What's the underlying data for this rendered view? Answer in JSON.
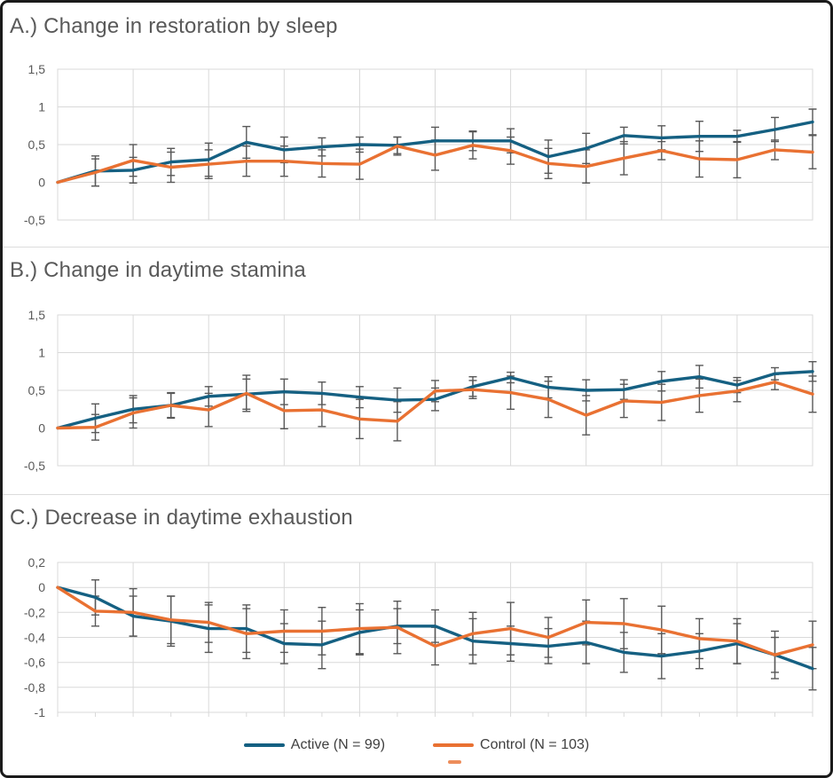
{
  "colors": {
    "active": "#156082",
    "control": "#E97132",
    "error_bar": "#595959",
    "gridline": "#D9D9D9",
    "title_text": "#595959",
    "tick_text": "#595959",
    "legend_text": "#3F3F3F",
    "border": "#1A1A1A",
    "background": "#FFFFFF"
  },
  "legend": {
    "items": [
      {
        "label": "Active (N = 99)",
        "color_key": "active"
      },
      {
        "label": "Control (N = 103)",
        "color_key": "control"
      }
    ]
  },
  "chart_data": [
    {
      "id": "A",
      "type": "line",
      "title": "A.) Change in restoration by sleep",
      "x": [
        0,
        1,
        2,
        3,
        4,
        5,
        6,
        7,
        8,
        9,
        10,
        11,
        12,
        13,
        14,
        15,
        16,
        17,
        18,
        19,
        20
      ],
      "ylim": [
        -0.5,
        1.5
      ],
      "yticks": [
        {
          "value": 1.5,
          "label": "1,5"
        },
        {
          "value": 1,
          "label": "1"
        },
        {
          "value": 0.5,
          "label": "0,5"
        },
        {
          "value": 0,
          "label": "0"
        },
        {
          "value": -0.5,
          "label": "-0,5"
        }
      ],
      "x_grid_step": 2,
      "x_tick_marks": false,
      "grid": true,
      "legend_position": "none",
      "series": [
        {
          "name": "Active (N = 99)",
          "color_key": "active",
          "values": [
            0,
            0.15,
            0.16,
            0.27,
            0.3,
            0.53,
            0.43,
            0.47,
            0.5,
            0.49,
            0.55,
            0.55,
            0.55,
            0.34,
            0.45,
            0.62,
            0.59,
            0.61,
            0.61,
            0.7,
            0.8
          ],
          "errors": [
            0,
            0.2,
            0.17,
            0.18,
            0.22,
            0.21,
            0.17,
            0.12,
            0.1,
            0.11,
            0.18,
            0.13,
            0.16,
            0.22,
            0.2,
            0.11,
            0.16,
            0.2,
            0.08,
            0.16,
            0.17
          ]
        },
        {
          "name": "Control (N = 103)",
          "color_key": "control",
          "values": [
            0,
            0.13,
            0.29,
            0.2,
            0.24,
            0.28,
            0.28,
            0.25,
            0.24,
            0.48,
            0.36,
            0.49,
            0.42,
            0.25,
            0.21,
            0.32,
            0.42,
            0.31,
            0.3,
            0.43,
            0.4
          ],
          "errors": [
            0,
            0.18,
            0.21,
            0.2,
            0.19,
            0.2,
            0.2,
            0.18,
            0.2,
            0.12,
            0.2,
            0.18,
            0.18,
            0.2,
            0.22,
            0.22,
            0.12,
            0.24,
            0.24,
            0.13,
            0.22
          ]
        }
      ]
    },
    {
      "id": "B",
      "type": "line",
      "title": "B.) Change in daytime stamina",
      "x": [
        0,
        1,
        2,
        3,
        4,
        5,
        6,
        7,
        8,
        9,
        10,
        11,
        12,
        13,
        14,
        15,
        16,
        17,
        18,
        19,
        20
      ],
      "ylim": [
        -0.5,
        1.5
      ],
      "yticks": [
        {
          "value": 1.5,
          "label": "1,5"
        },
        {
          "value": 1,
          "label": "1"
        },
        {
          "value": 0.5,
          "label": "0,5"
        },
        {
          "value": 0,
          "label": "0"
        },
        {
          "value": -0.5,
          "label": "-0,5"
        }
      ],
      "x_grid_step": 2,
      "x_tick_marks": false,
      "grid": true,
      "legend_position": "none",
      "series": [
        {
          "name": "Active (N = 99)",
          "color_key": "active",
          "values": [
            0,
            0.13,
            0.25,
            0.3,
            0.42,
            0.45,
            0.48,
            0.46,
            0.41,
            0.37,
            0.38,
            0.55,
            0.67,
            0.54,
            0.5,
            0.51,
            0.62,
            0.68,
            0.57,
            0.72,
            0.75
          ],
          "errors": [
            0,
            0.19,
            0.18,
            0.16,
            0.13,
            0.2,
            0.17,
            0.15,
            0.14,
            0.16,
            0.15,
            0.13,
            0.07,
            0.14,
            0.14,
            0.13,
            0.13,
            0.15,
            0.1,
            0.08,
            0.13
          ]
        },
        {
          "name": "Control (N = 103)",
          "color_key": "control",
          "values": [
            0,
            0.01,
            0.2,
            0.3,
            0.24,
            0.46,
            0.23,
            0.24,
            0.12,
            0.09,
            0.49,
            0.51,
            0.47,
            0.38,
            0.17,
            0.36,
            0.34,
            0.43,
            0.49,
            0.61,
            0.45
          ],
          "errors": [
            0,
            0.17,
            0.2,
            0.17,
            0.22,
            0.24,
            0.24,
            0.22,
            0.26,
            0.26,
            0.14,
            0.12,
            0.22,
            0.24,
            0.26,
            0.22,
            0.24,
            0.22,
            0.14,
            0.1,
            0.24
          ]
        }
      ]
    },
    {
      "id": "C",
      "type": "line",
      "title": "C.) Decrease in daytime exhaustion",
      "x": [
        0,
        1,
        2,
        3,
        4,
        5,
        6,
        7,
        8,
        9,
        10,
        11,
        12,
        13,
        14,
        15,
        16,
        17,
        18,
        19,
        20
      ],
      "ylim": [
        -1,
        0.2
      ],
      "yticks": [
        {
          "value": 0.2,
          "label": "0,2"
        },
        {
          "value": 0,
          "label": "0"
        },
        {
          "value": -0.2,
          "label": "-0,2"
        },
        {
          "value": -0.4,
          "label": "-0,4"
        },
        {
          "value": -0.6,
          "label": "-0,6"
        },
        {
          "value": -0.8,
          "label": "-0,8"
        },
        {
          "value": -1,
          "label": "-1"
        }
      ],
      "x_grid_step": 2,
      "x_tick_marks": true,
      "grid": true,
      "legend_position": "bottom",
      "series": [
        {
          "name": "Active (N = 99)",
          "color_key": "active",
          "values": [
            0,
            -0.08,
            -0.23,
            -0.27,
            -0.33,
            -0.33,
            -0.45,
            -0.46,
            -0.36,
            -0.31,
            -0.31,
            -0.43,
            -0.45,
            -0.47,
            -0.44,
            -0.52,
            -0.55,
            -0.51,
            -0.45,
            -0.54,
            -0.65
          ],
          "errors": [
            0,
            0.14,
            0.16,
            0.2,
            0.19,
            0.19,
            0.16,
            0.19,
            0.18,
            0.14,
            0.13,
            0.18,
            0.14,
            0.14,
            0.17,
            0.16,
            0.18,
            0.14,
            0.16,
            0.19,
            0.17
          ]
        },
        {
          "name": "Control (N = 103)",
          "color_key": "control",
          "values": [
            0,
            -0.19,
            -0.2,
            -0.26,
            -0.28,
            -0.37,
            -0.35,
            -0.35,
            -0.33,
            -0.32,
            -0.47,
            -0.37,
            -0.33,
            -0.4,
            -0.28,
            -0.29,
            -0.34,
            -0.41,
            -0.43,
            -0.54,
            -0.46
          ],
          "errors": [
            0,
            0.12,
            0.19,
            0.19,
            0.16,
            0.2,
            0.17,
            0.19,
            0.2,
            0.21,
            0.15,
            0.17,
            0.21,
            0.16,
            0.18,
            0.2,
            0.19,
            0.16,
            0.18,
            0.14,
            0.19
          ]
        }
      ]
    }
  ]
}
